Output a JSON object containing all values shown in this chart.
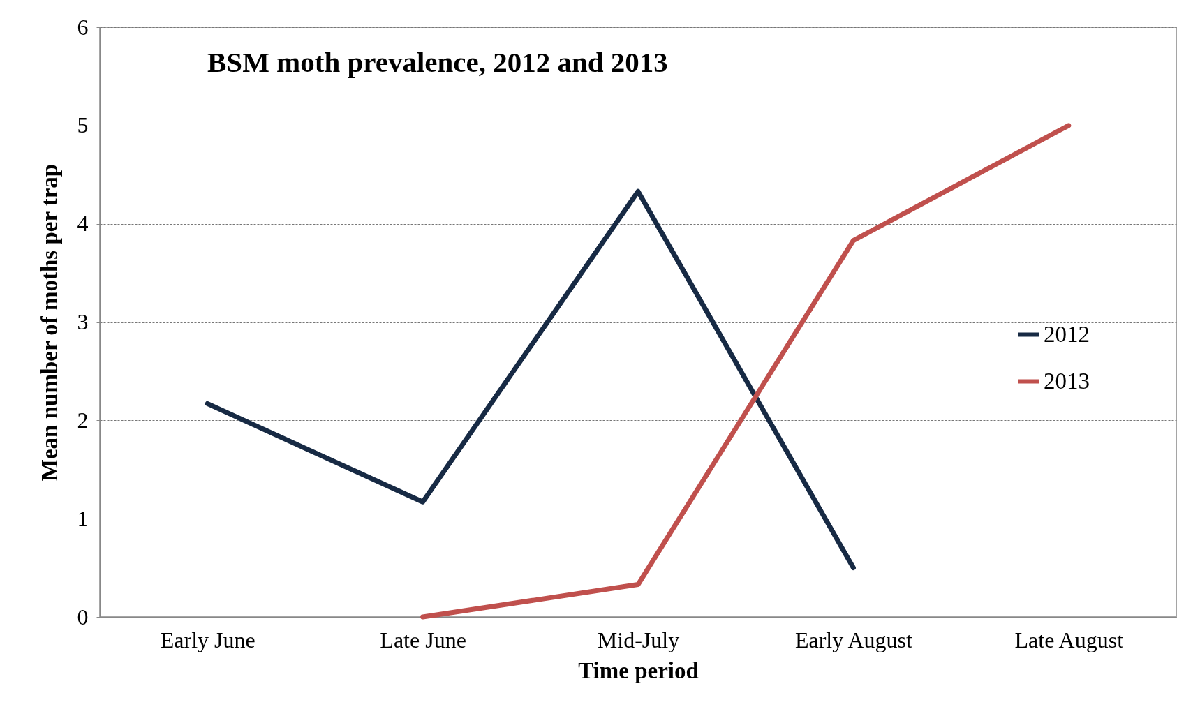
{
  "chart_data": {
    "type": "line",
    "title": "BSM moth prevalence, 2012 and 2013",
    "xlabel": "Time period",
    "ylabel": "Mean number of moths per trap",
    "categories": [
      "Early June",
      "Late June",
      "Mid-July",
      "Early August",
      "Late August"
    ],
    "series": [
      {
        "name": "2012",
        "color": "#172a44",
        "values": [
          2.17,
          1.17,
          4.33,
          0.5,
          null
        ]
      },
      {
        "name": "2013",
        "color": "#c0504d",
        "values": [
          null,
          0,
          0.33,
          3.83,
          5
        ]
      }
    ],
    "ylim": [
      0,
      6
    ],
    "yticks": [
      0,
      1,
      2,
      3,
      4,
      5,
      6
    ],
    "grid": "y",
    "legend": "right",
    "marker": "none",
    "line_style": "solid"
  }
}
